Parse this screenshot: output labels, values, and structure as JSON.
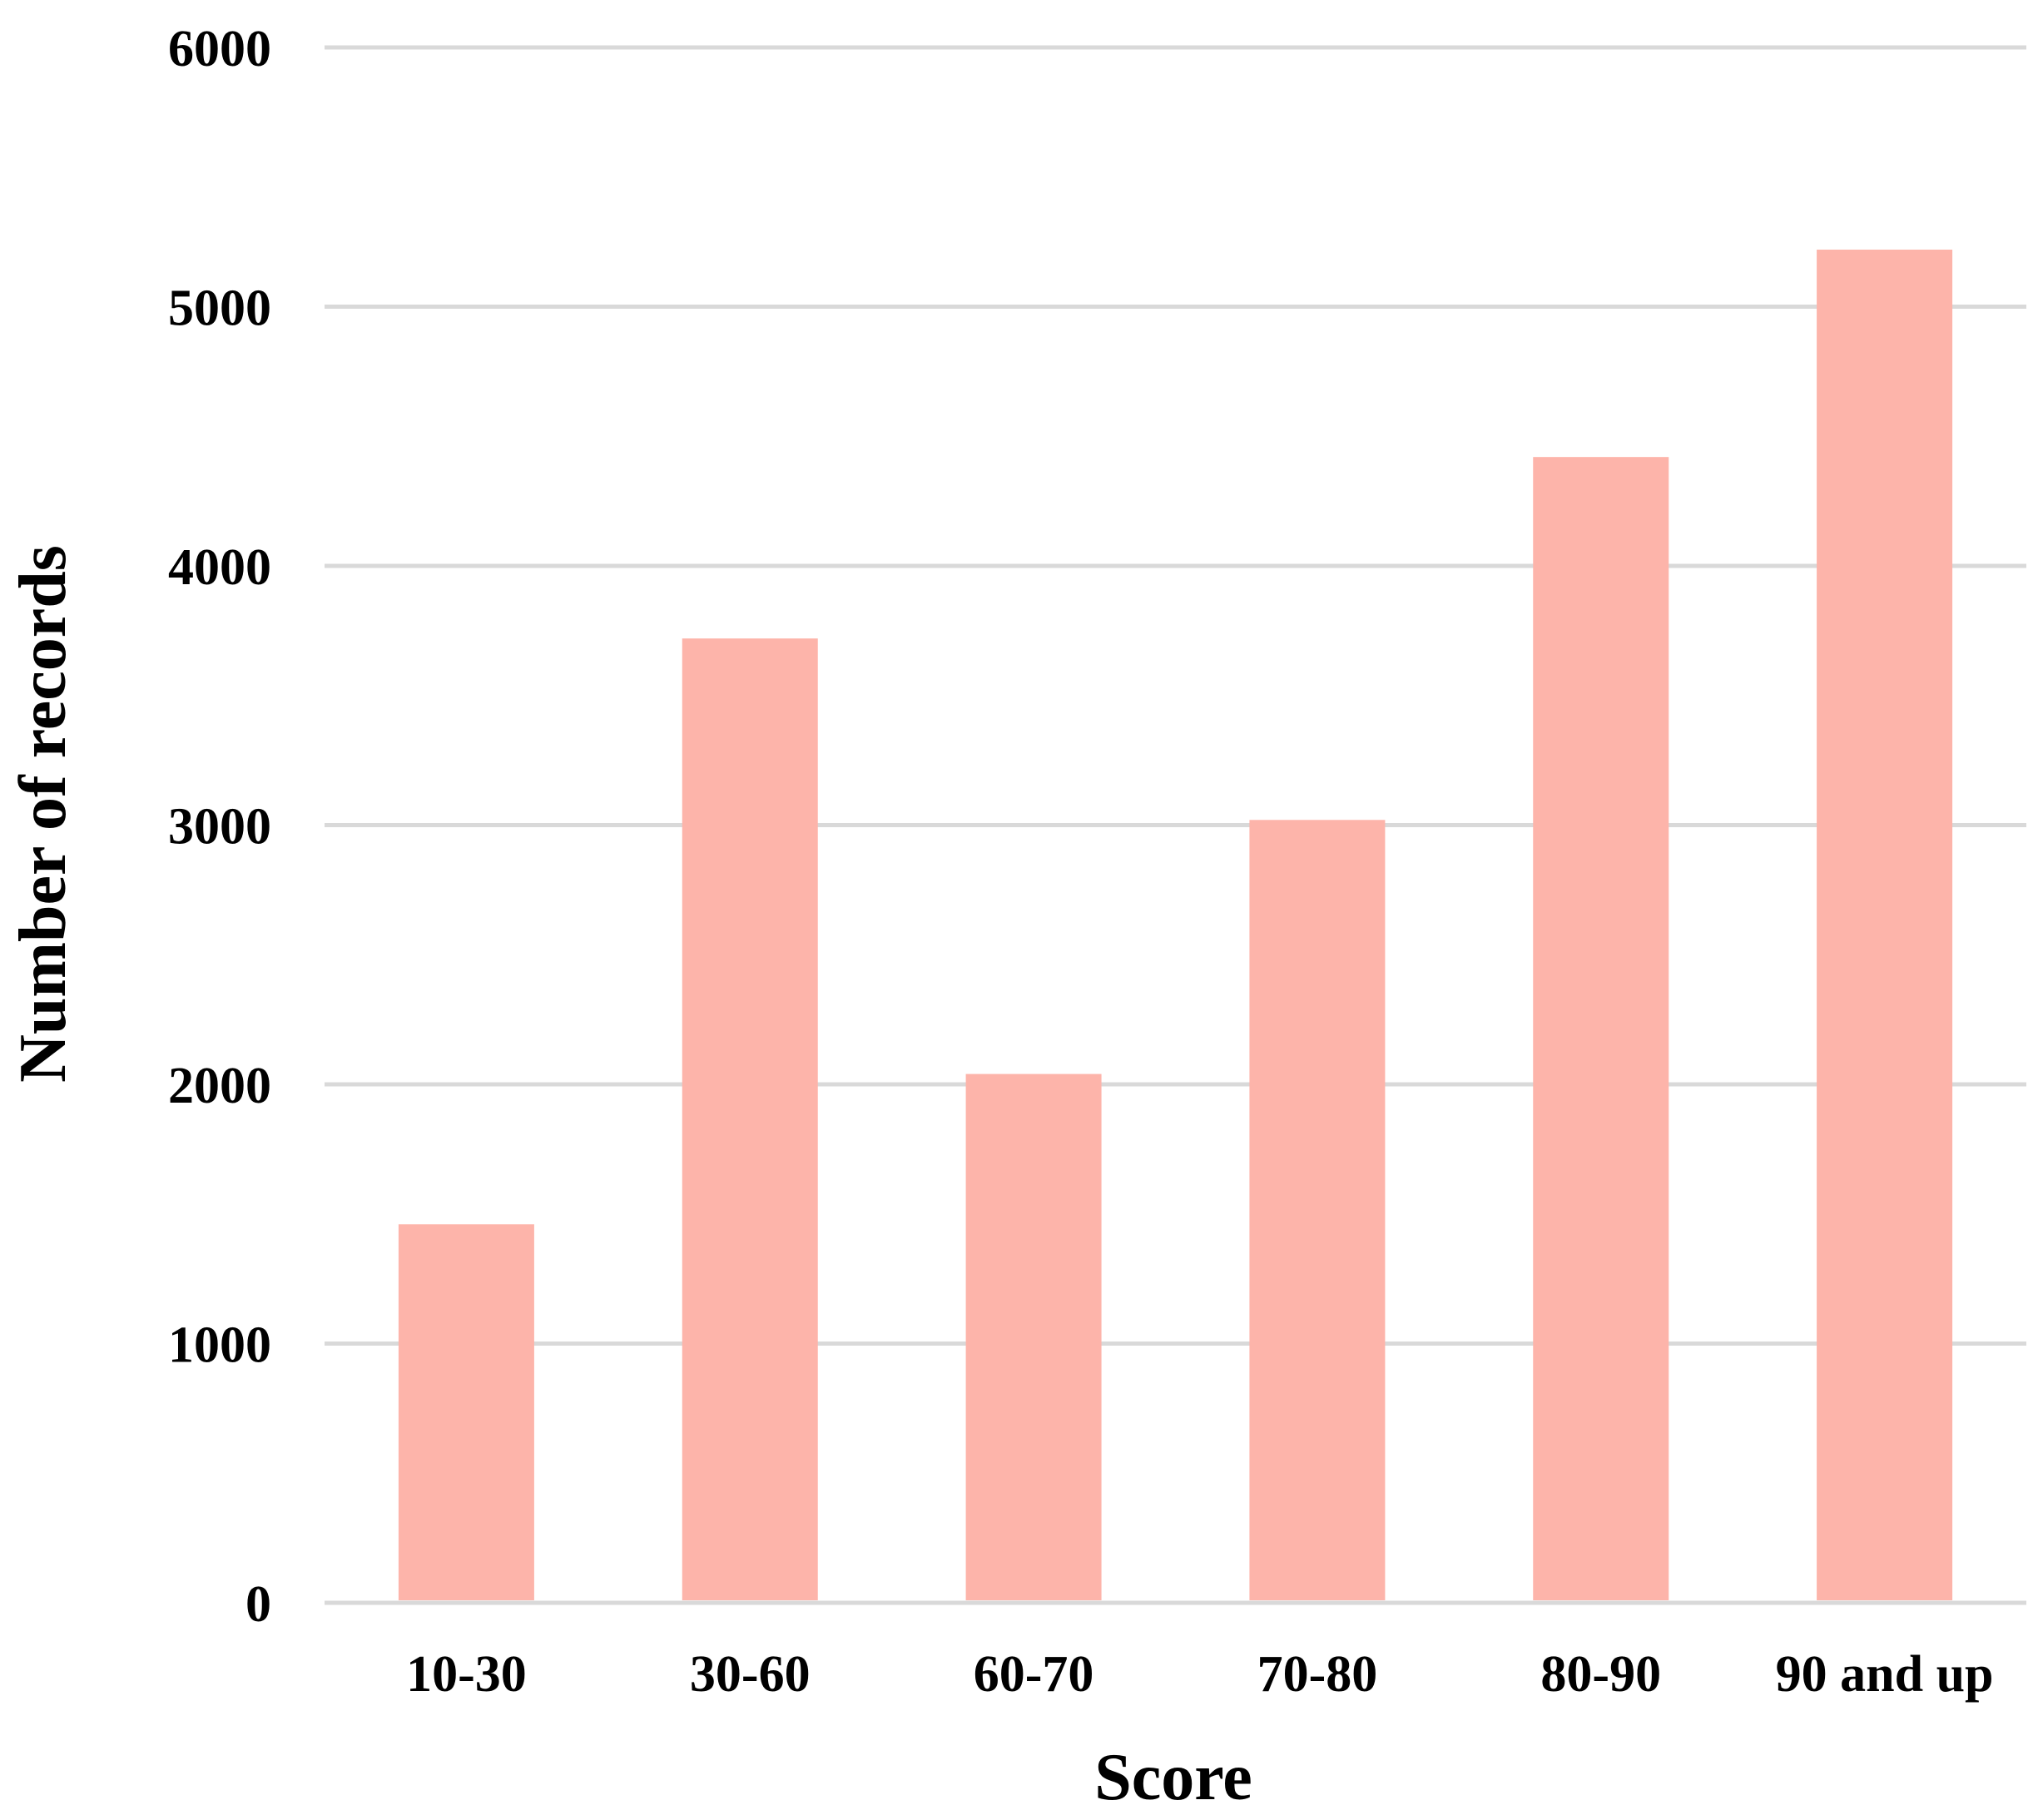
{
  "chart_data": {
    "type": "bar",
    "title": "",
    "xlabel": "Score",
    "ylabel": "Number of records",
    "categories": [
      "10-30",
      "30-60",
      "60-70",
      "70-80",
      "80-90",
      "90 and up"
    ],
    "values": [
      1460,
      3720,
      2040,
      3020,
      4420,
      5220
    ],
    "ylim": [
      0,
      6000
    ],
    "yticks": [
      "0",
      "1000",
      "2000",
      "3000",
      "4000",
      "5000",
      "6000"
    ],
    "grid": true,
    "legend": "none",
    "bar_color": "#fdb4aa",
    "grid_color": "#d9d9d9"
  }
}
